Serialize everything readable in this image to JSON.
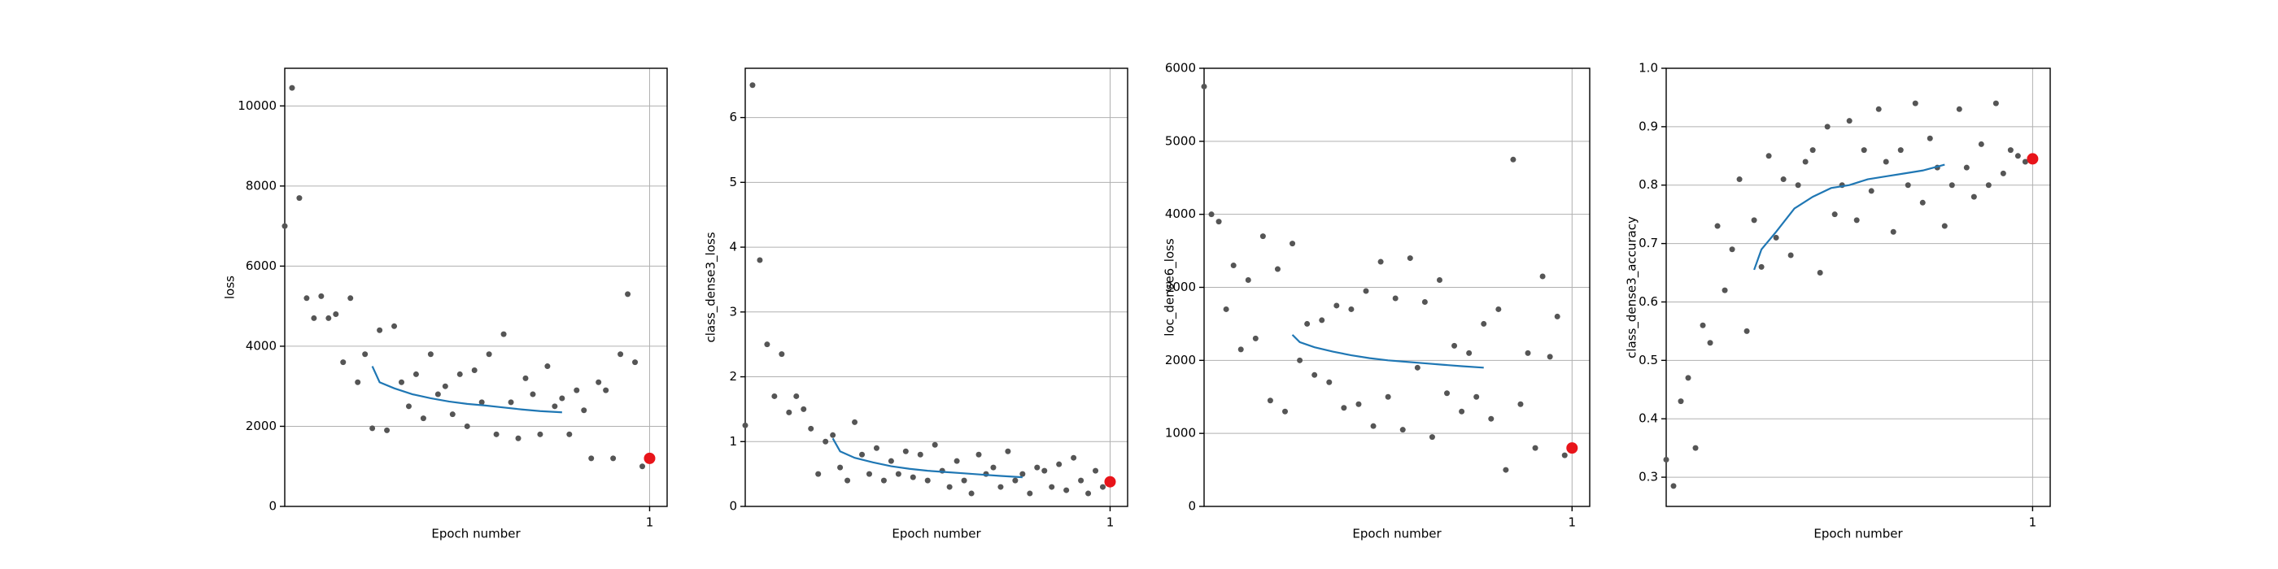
{
  "chart_data": [
    {
      "type": "scatter",
      "x_label": "Epoch number",
      "y_label": "loss",
      "xlim": [
        0,
        1.048
      ],
      "xticks": [
        1
      ],
      "ylim": [
        0,
        10940
      ],
      "yticks": [
        0,
        2000,
        4000,
        6000,
        8000,
        10000
      ],
      "grid": true,
      "series": [
        {
          "type": "scatter",
          "color": "#555555",
          "x": [
            0,
            0.02,
            0.04,
            0.06,
            0.08,
            0.1,
            0.12,
            0.14,
            0.16,
            0.18,
            0.2,
            0.22,
            0.24,
            0.26,
            0.28,
            0.3,
            0.32,
            0.34,
            0.36,
            0.38,
            0.4,
            0.42,
            0.44,
            0.46,
            0.48,
            0.5,
            0.52,
            0.54,
            0.56,
            0.58,
            0.6,
            0.62,
            0.64,
            0.66,
            0.68,
            0.7,
            0.72,
            0.74,
            0.76,
            0.78,
            0.8,
            0.82,
            0.84,
            0.86,
            0.88,
            0.9,
            0.92,
            0.94,
            0.96,
            0.98
          ],
          "values": [
            7000,
            10450,
            7700,
            5200,
            4700,
            5250,
            4700,
            4800,
            3600,
            5200,
            3100,
            3800,
            1950,
            4400,
            1900,
            4500,
            3100,
            2500,
            3300,
            2200,
            3800,
            2800,
            3000,
            2300,
            3300,
            2000,
            3400,
            2600,
            3800,
            1800,
            4300,
            2600,
            1700,
            3200,
            2800,
            1800,
            3500,
            2500,
            2700,
            1800,
            2900,
            2400,
            1200,
            3100,
            2900,
            1200,
            3800,
            5300,
            3600,
            1000
          ]
        },
        {
          "type": "line",
          "color": "#1f77b4",
          "x": [
            0.24,
            0.26,
            0.3,
            0.35,
            0.4,
            0.45,
            0.5,
            0.55,
            0.6,
            0.65,
            0.7,
            0.76
          ],
          "values": [
            3500,
            3100,
            2950,
            2800,
            2700,
            2620,
            2560,
            2520,
            2470,
            2420,
            2380,
            2350
          ]
        },
        {
          "type": "scatter",
          "color": "#e8141a",
          "x": [
            1
          ],
          "values": [
            1200
          ]
        }
      ]
    },
    {
      "type": "scatter",
      "x_label": "Epoch number",
      "y_label": "class_dense3_loss",
      "xlim": [
        0,
        1.048
      ],
      "xticks": [
        1
      ],
      "ylim": [
        0,
        6.76
      ],
      "yticks": [
        0,
        1,
        2,
        3,
        4,
        5,
        6
      ],
      "grid": true,
      "series": [
        {
          "type": "scatter",
          "color": "#555555",
          "x": [
            0,
            0.02,
            0.04,
            0.06,
            0.08,
            0.1,
            0.12,
            0.14,
            0.16,
            0.18,
            0.2,
            0.22,
            0.24,
            0.26,
            0.28,
            0.3,
            0.32,
            0.34,
            0.36,
            0.38,
            0.4,
            0.42,
            0.44,
            0.46,
            0.48,
            0.5,
            0.52,
            0.54,
            0.56,
            0.58,
            0.6,
            0.62,
            0.64,
            0.66,
            0.68,
            0.7,
            0.72,
            0.74,
            0.76,
            0.78,
            0.8,
            0.82,
            0.84,
            0.86,
            0.88,
            0.9,
            0.92,
            0.94,
            0.96,
            0.98
          ],
          "values": [
            1.25,
            6.5,
            3.8,
            2.5,
            1.7,
            2.35,
            1.45,
            1.7,
            1.5,
            1.2,
            0.5,
            1.0,
            1.1,
            0.6,
            0.4,
            1.3,
            0.8,
            0.5,
            0.9,
            0.4,
            0.7,
            0.5,
            0.85,
            0.45,
            0.8,
            0.4,
            0.95,
            0.55,
            0.3,
            0.7,
            0.4,
            0.2,
            0.8,
            0.5,
            0.6,
            0.3,
            0.85,
            0.4,
            0.5,
            0.2,
            0.6,
            0.55,
            0.3,
            0.65,
            0.25,
            0.75,
            0.4,
            0.2,
            0.55,
            0.3
          ]
        },
        {
          "type": "line",
          "color": "#1f77b4",
          "x": [
            0.24,
            0.26,
            0.3,
            0.35,
            0.4,
            0.45,
            0.5,
            0.55,
            0.6,
            0.65,
            0.7,
            0.76
          ],
          "values": [
            1.05,
            0.85,
            0.75,
            0.68,
            0.62,
            0.58,
            0.55,
            0.53,
            0.51,
            0.49,
            0.47,
            0.45
          ]
        },
        {
          "type": "scatter",
          "color": "#e8141a",
          "x": [
            1
          ],
          "values": [
            0.38
          ]
        }
      ]
    },
    {
      "type": "scatter",
      "x_label": "Epoch number",
      "y_label": "loc_dense6_loss",
      "xlim": [
        0,
        1.048
      ],
      "xticks": [
        1
      ],
      "ylim": [
        0,
        6000
      ],
      "yticks": [
        0,
        1000,
        2000,
        3000,
        4000,
        5000,
        6000
      ],
      "grid": true,
      "series": [
        {
          "type": "scatter",
          "color": "#555555",
          "x": [
            0,
            0.02,
            0.04,
            0.06,
            0.08,
            0.1,
            0.12,
            0.14,
            0.16,
            0.18,
            0.2,
            0.22,
            0.24,
            0.26,
            0.28,
            0.3,
            0.32,
            0.34,
            0.36,
            0.38,
            0.4,
            0.42,
            0.44,
            0.46,
            0.48,
            0.5,
            0.52,
            0.54,
            0.56,
            0.58,
            0.6,
            0.62,
            0.64,
            0.66,
            0.68,
            0.7,
            0.72,
            0.74,
            0.76,
            0.78,
            0.8,
            0.82,
            0.84,
            0.86,
            0.88,
            0.9,
            0.92,
            0.94,
            0.96,
            0.98
          ],
          "values": [
            5750,
            4000,
            3900,
            2700,
            3300,
            2150,
            3100,
            2300,
            3700,
            1450,
            3250,
            1300,
            3600,
            2000,
            2500,
            1800,
            2550,
            1700,
            2750,
            1350,
            2700,
            1400,
            2950,
            1100,
            3350,
            1500,
            2850,
            1050,
            3400,
            1900,
            2800,
            950,
            3100,
            1550,
            2200,
            1300,
            2100,
            1500,
            2500,
            1200,
            2700,
            500,
            4750,
            1400,
            2100,
            800,
            3150,
            2050,
            2600,
            700
          ]
        },
        {
          "type": "line",
          "color": "#1f77b4",
          "x": [
            0.24,
            0.26,
            0.3,
            0.35,
            0.4,
            0.45,
            0.5,
            0.55,
            0.6,
            0.65,
            0.7,
            0.76
          ],
          "values": [
            2350,
            2250,
            2180,
            2120,
            2070,
            2030,
            2000,
            1980,
            1960,
            1940,
            1920,
            1900
          ]
        },
        {
          "type": "scatter",
          "color": "#e8141a",
          "x": [
            1
          ],
          "values": [
            800
          ]
        }
      ]
    },
    {
      "type": "scatter",
      "x_label": "Epoch number",
      "y_label": "class_dense3_accuracy",
      "xlim": [
        0,
        1.048
      ],
      "xticks": [
        1
      ],
      "ylim": [
        0.25,
        1.0
      ],
      "yticks": [
        0.3,
        0.4,
        0.5,
        0.6,
        0.7,
        0.8,
        0.9,
        {
          "value": 1,
          "label": "1.0"
        }
      ],
      "grid": true,
      "series": [
        {
          "type": "scatter",
          "color": "#555555",
          "x": [
            0,
            0.02,
            0.04,
            0.06,
            0.08,
            0.1,
            0.12,
            0.14,
            0.16,
            0.18,
            0.2,
            0.22,
            0.24,
            0.26,
            0.28,
            0.3,
            0.32,
            0.34,
            0.36,
            0.38,
            0.4,
            0.42,
            0.44,
            0.46,
            0.48,
            0.5,
            0.52,
            0.54,
            0.56,
            0.58,
            0.6,
            0.62,
            0.64,
            0.66,
            0.68,
            0.7,
            0.72,
            0.74,
            0.76,
            0.78,
            0.8,
            0.82,
            0.84,
            0.86,
            0.88,
            0.9,
            0.92,
            0.94,
            0.96,
            0.98
          ],
          "values": [
            0.33,
            0.285,
            0.43,
            0.47,
            0.35,
            0.56,
            0.53,
            0.73,
            0.62,
            0.69,
            0.81,
            0.55,
            0.74,
            0.66,
            0.85,
            0.71,
            0.81,
            0.68,
            0.8,
            0.84,
            0.86,
            0.65,
            0.9,
            0.75,
            0.8,
            0.91,
            0.74,
            0.86,
            0.79,
            0.93,
            0.84,
            0.72,
            0.86,
            0.8,
            0.94,
            0.77,
            0.88,
            0.83,
            0.73,
            0.8,
            0.93,
            0.83,
            0.78,
            0.87,
            0.8,
            0.94,
            0.82,
            0.86,
            0.85,
            0.84
          ]
        },
        {
          "type": "line",
          "color": "#1f77b4",
          "x": [
            0.24,
            0.26,
            0.3,
            0.35,
            0.4,
            0.45,
            0.5,
            0.55,
            0.6,
            0.65,
            0.7,
            0.76
          ],
          "values": [
            0.655,
            0.69,
            0.72,
            0.76,
            0.78,
            0.795,
            0.8,
            0.81,
            0.815,
            0.82,
            0.825,
            0.835
          ]
        },
        {
          "type": "scatter",
          "color": "#e8141a",
          "x": [
            1
          ],
          "values": [
            0.845
          ]
        }
      ]
    }
  ]
}
